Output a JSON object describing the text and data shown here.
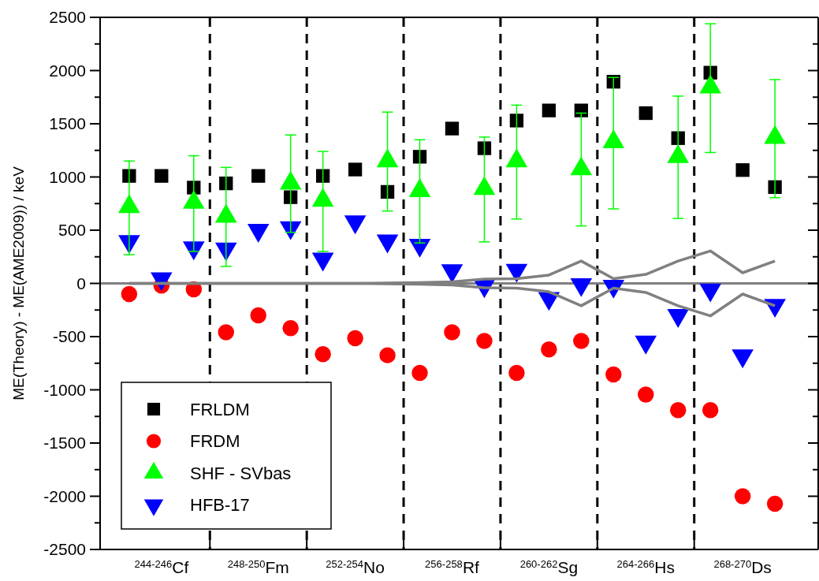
{
  "chart_data": {
    "type": "scatter",
    "ylabel": "ME(Theory) - ME(AME2009)) / keV",
    "categories": [
      null,
      "$^{244-246}$Cf",
      null,
      null,
      "$^{248-250}$Fm",
      null,
      null,
      "$^{252-254}$No",
      null,
      null,
      "$^{256-258}$Rf",
      null,
      null,
      "$^{260-262}$Sg",
      null,
      null,
      "$^{264-266}$Hs",
      null,
      null,
      "$^{268-270}$Ds",
      null
    ],
    "ylim": [
      -2500,
      2500
    ],
    "yticks": [
      -2500,
      {
        "value": -2250,
        "label": null
      },
      -2000,
      {
        "value": -1750,
        "label": null
      },
      -1500,
      {
        "value": -1250,
        "label": null
      },
      -1000,
      {
        "value": -750,
        "label": null
      },
      -500,
      {
        "value": -250,
        "label": null
      },
      0,
      {
        "value": 250,
        "label": null
      },
      500,
      {
        "value": 750,
        "label": null
      },
      1000,
      {
        "value": 1250,
        "label": null
      },
      1500,
      {
        "value": 1750,
        "label": null
      },
      2000,
      {
        "value": 2250,
        "label": null
      },
      2500
    ],
    "legend": "bottom left",
    "ref_lines": [
      {
        "axis": "y",
        "value": 0,
        "color": "#808080",
        "line_style": "solid"
      }
    ],
    "series": [
      {
        "name": "FRLDM",
        "color": "#000000",
        "marker": "square",
        "values": [
          1010,
          1010,
          900,
          940,
          1010,
          810,
          1010,
          1070,
          860,
          1190,
          1455,
          1270,
          1530,
          1625,
          1625,
          1895,
          1600,
          1365,
          1980,
          1065,
          905
        ]
      },
      {
        "name": "FRDM",
        "color": "#ff0000",
        "marker": "circle",
        "values": [
          -100,
          -20,
          -55,
          -460,
          -300,
          -420,
          -665,
          -515,
          -675,
          -840,
          -460,
          -540,
          -840,
          -620,
          -540,
          -855,
          -1045,
          -1190,
          -1190,
          -2000,
          -2070
        ]
      },
      {
        "name": "SHF - SVbas",
        "color": "#00ff00",
        "marker": "triangle",
        "values": [
          720,
          null,
          760,
          630,
          null,
          940,
          780,
          null,
          1150,
          870,
          null,
          890,
          1150,
          null,
          1075,
          1330,
          null,
          1190,
          1845,
          null,
          1370
        ],
        "errors": [
          [
            270,
            1150
          ],
          null,
          [
            300,
            1200
          ],
          [
            160,
            1090
          ],
          null,
          [
            480,
            1395
          ],
          [
            300,
            1240
          ],
          null,
          [
            680,
            1610
          ],
          [
            380,
            1350
          ],
          null,
          [
            390,
            1375
          ],
          [
            605,
            1675
          ],
          null,
          [
            540,
            1600
          ],
          [
            700,
            1935
          ],
          null,
          [
            610,
            1760
          ],
          [
            1230,
            2440
          ],
          null,
          [
            805,
            1915
          ]
        ]
      },
      {
        "name": "HFB-17",
        "color": "#0000ff",
        "marker": "triangle-down",
        "values": [
          395,
          45,
          335,
          325,
          500,
          525,
          230,
          580,
          400,
          360,
          120,
          -20,
          125,
          -140,
          -10,
          -25,
          -550,
          -300,
          -60,
          -680,
          -205
        ]
      },
      {
        "type": "line",
        "color": "#808080",
        "marker": "none",
        "line_style": "solid",
        "values": [
          0,
          0,
          0,
          0,
          0,
          0,
          0,
          0,
          3,
          8,
          15,
          40,
          45,
          78,
          210,
          45,
          85,
          210,
          305,
          100,
          210
        ]
      },
      {
        "type": "line",
        "color": "#808080",
        "marker": "none",
        "line_style": "solid",
        "values": [
          0,
          0,
          0,
          0,
          0,
          0,
          0,
          0,
          -3,
          -8,
          -15,
          -40,
          -45,
          -78,
          -210,
          -45,
          -85,
          -210,
          -305,
          -100,
          -210
        ]
      }
    ]
  }
}
